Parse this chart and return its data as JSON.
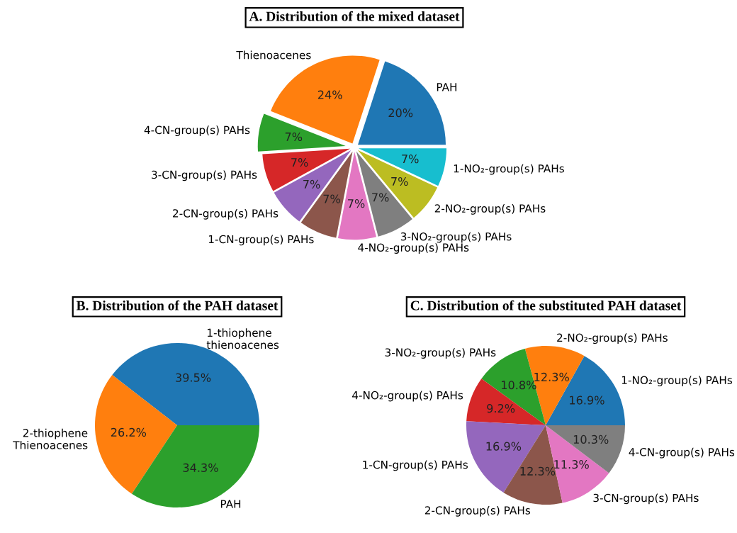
{
  "chart_data": [
    {
      "type": "pie",
      "title": "A. Distribution of the mixed dataset",
      "categories": [
        "PAH",
        "Thienoacenes",
        "4-CN-group(s) PAHs",
        "3-CN-group(s) PAHs",
        "2-CN-group(s) PAHs",
        "1-CN-group(s) PAHs",
        "4-NO₂-group(s) PAHs",
        "3-NO₂-group(s) PAHs",
        "2-NO₂-group(s) PAHs",
        "1-NO₂-group(s) PAHs"
      ],
      "values": [
        20,
        24,
        7,
        7,
        7,
        7,
        7,
        7,
        7,
        7
      ],
      "value_labels": [
        "20%",
        "24%",
        "7%",
        "7%",
        "7%",
        "7%",
        "7%",
        "7%",
        "7%",
        "7%"
      ],
      "colors": [
        "#1f77b4",
        "#ff7f0e",
        "#2ca02c",
        "#d62728",
        "#9467bd",
        "#8c564b",
        "#e377c2",
        "#7f7f7f",
        "#bcbd22",
        "#17becf"
      ]
    },
    {
      "type": "pie",
      "title": "B. Distribution of the PAH dataset",
      "categories": [
        "1-thiophene\nthienoacenes",
        "2-thiophene\nThienoacenes",
        "PAH"
      ],
      "values": [
        39.5,
        26.2,
        34.3
      ],
      "value_labels": [
        "39.5%",
        "26.2%",
        "34.3%"
      ],
      "colors": [
        "#1f77b4",
        "#ff7f0e",
        "#2ca02c"
      ]
    },
    {
      "type": "pie",
      "title": "C. Distribution of the substituted PAH dataset",
      "categories": [
        "1-NO₂-group(s) PAHs",
        "2-NO₂-group(s) PAHs",
        "3-NO₂-group(s) PAHs",
        "4-NO₂-group(s) PAHs",
        "1-CN-group(s) PAHs",
        "2-CN-group(s) PAHs",
        "3-CN-group(s) PAHs",
        "4-CN-group(s) PAHs"
      ],
      "values": [
        16.9,
        12.3,
        10.8,
        9.2,
        16.9,
        12.3,
        11.3,
        10.3
      ],
      "value_labels": [
        "16.9%",
        "12.3%",
        "10.8%",
        "9.2%",
        "16.9%",
        "12.3%",
        "11.3%",
        "10.3%"
      ],
      "colors": [
        "#1f77b4",
        "#ff7f0e",
        "#2ca02c",
        "#d62728",
        "#9467bd",
        "#8c564b",
        "#e377c2",
        "#7f7f7f"
      ]
    }
  ]
}
